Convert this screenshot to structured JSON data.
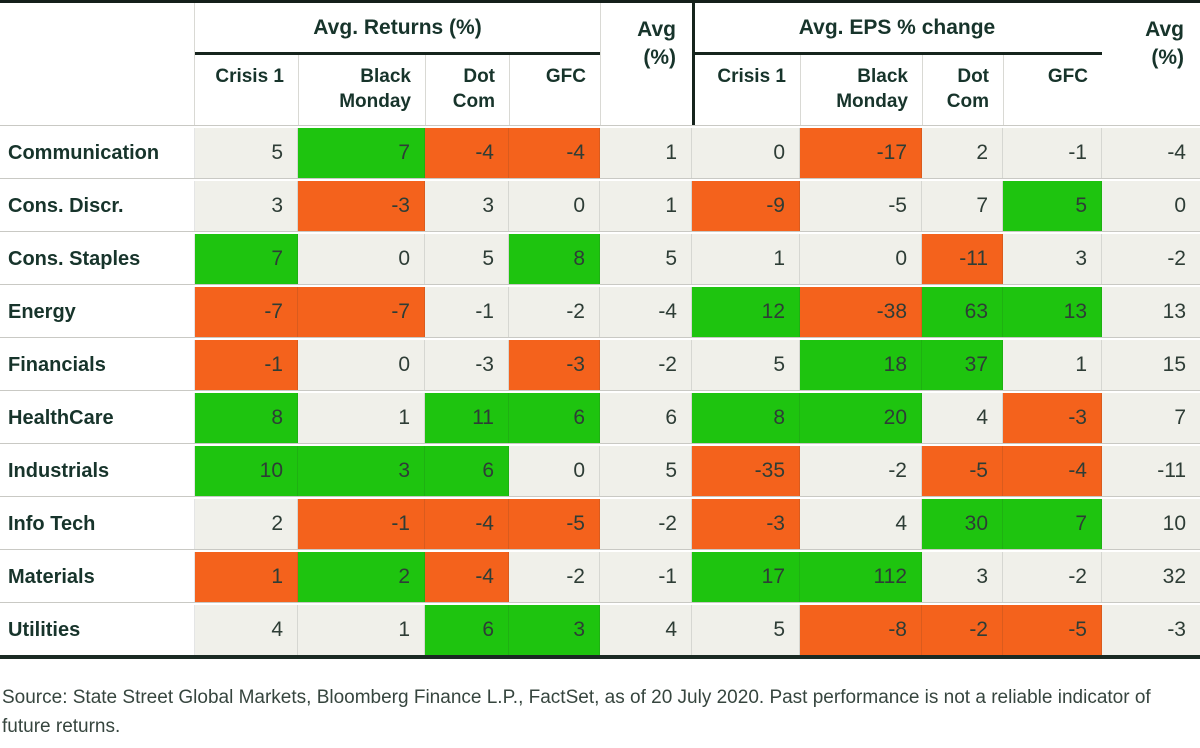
{
  "colors": {
    "green": "#1ec40f",
    "orange": "#f4621c",
    "neutral": "#f0f0ea",
    "divider_dark": "#16241d",
    "heading_text": "#17342b",
    "number_text": "#2e3d36"
  },
  "header": {
    "returns_group": "Avg. Returns (%)",
    "eps_group": "Avg. EPS % change",
    "avg_line1": "Avg",
    "avg_line2": "(%)"
  },
  "chart_data": {
    "type": "table",
    "column_groups": [
      "Avg. Returns (%)",
      "Avg. EPS % change"
    ],
    "crisis_columns": [
      "Crisis 1",
      "Black Monday",
      "Dot Com",
      "GFC"
    ],
    "avg_column_label": "Avg (%)",
    "cell_color_legend": {
      "green": "favorable",
      "orange": "unfavorable",
      "neutral": "neutral"
    },
    "rows": [
      {
        "sector": "Communication",
        "highlight": false,
        "returns": [
          5,
          7,
          -4,
          -4
        ],
        "returns_colors": [
          "neutral",
          "green",
          "orange",
          "orange"
        ],
        "returns_avg": 1,
        "eps": [
          0,
          -17,
          2,
          -1
        ],
        "eps_colors": [
          "neutral",
          "orange",
          "neutral",
          "neutral"
        ],
        "eps_avg": -4
      },
      {
        "sector": "Cons. Discr.",
        "highlight": false,
        "returns": [
          3,
          -3,
          3,
          0
        ],
        "returns_colors": [
          "neutral",
          "orange",
          "neutral",
          "neutral"
        ],
        "returns_avg": 1,
        "eps": [
          -9,
          -5,
          7,
          5
        ],
        "eps_colors": [
          "orange",
          "neutral",
          "neutral",
          "green"
        ],
        "eps_avg": 0
      },
      {
        "sector": "Cons. Staples",
        "highlight": false,
        "returns": [
          7,
          0,
          5,
          8
        ],
        "returns_colors": [
          "green",
          "neutral",
          "neutral",
          "green"
        ],
        "returns_avg": 5,
        "eps": [
          1,
          0,
          -11,
          3
        ],
        "eps_colors": [
          "neutral",
          "neutral",
          "orange",
          "neutral"
        ],
        "eps_avg": -2
      },
      {
        "sector": "Energy",
        "highlight": false,
        "returns": [
          -7,
          -7,
          -1,
          -2
        ],
        "returns_colors": [
          "orange",
          "orange",
          "neutral",
          "neutral"
        ],
        "returns_avg": -4,
        "eps": [
          12,
          -38,
          63,
          13
        ],
        "eps_colors": [
          "green",
          "orange",
          "green",
          "green"
        ],
        "eps_avg": 13
      },
      {
        "sector": "Financials",
        "highlight": false,
        "returns": [
          -1,
          0,
          -3,
          -3
        ],
        "returns_colors": [
          "orange",
          "neutral",
          "neutral",
          "orange"
        ],
        "returns_avg": -2,
        "eps": [
          5,
          18,
          37,
          1
        ],
        "eps_colors": [
          "neutral",
          "green",
          "green",
          "neutral"
        ],
        "eps_avg": 15
      },
      {
        "sector": "HealthCare",
        "highlight": false,
        "returns": [
          8,
          1,
          11,
          6
        ],
        "returns_colors": [
          "green",
          "neutral",
          "green",
          "green"
        ],
        "returns_avg": 6,
        "eps": [
          8,
          20,
          4,
          -3
        ],
        "eps_colors": [
          "green",
          "green",
          "neutral",
          "orange"
        ],
        "eps_avg": 7
      },
      {
        "sector": "Industrials",
        "highlight": true,
        "returns": [
          10,
          3,
          6,
          0
        ],
        "returns_colors": [
          "green",
          "green",
          "green",
          "neutral"
        ],
        "returns_avg": 5,
        "eps": [
          -35,
          -2,
          -5,
          -4
        ],
        "eps_colors": [
          "orange",
          "neutral",
          "orange",
          "orange"
        ],
        "eps_avg": -11
      },
      {
        "sector": "Info Tech",
        "highlight": false,
        "returns": [
          2,
          -1,
          -4,
          -5
        ],
        "returns_colors": [
          "neutral",
          "orange",
          "orange",
          "orange"
        ],
        "returns_avg": -2,
        "eps": [
          -3,
          4,
          30,
          7
        ],
        "eps_colors": [
          "orange",
          "neutral",
          "green",
          "green"
        ],
        "eps_avg": 10
      },
      {
        "sector": "Materials",
        "highlight": false,
        "returns": [
          1,
          2,
          -4,
          -2
        ],
        "returns_colors": [
          "orange",
          "green",
          "orange",
          "neutral"
        ],
        "returns_avg": -1,
        "eps": [
          17,
          112,
          3,
          -2
        ],
        "eps_colors": [
          "green",
          "green",
          "neutral",
          "neutral"
        ],
        "eps_avg": 32
      },
      {
        "sector": "Utilities",
        "highlight": false,
        "returns": [
          4,
          1,
          6,
          3
        ],
        "returns_colors": [
          "neutral",
          "neutral",
          "green",
          "green"
        ],
        "returns_avg": 4,
        "eps": [
          5,
          -8,
          -2,
          -5
        ],
        "eps_colors": [
          "neutral",
          "orange",
          "orange",
          "orange"
        ],
        "eps_avg": -3
      }
    ]
  },
  "footer": {
    "source_text": "Source: State Street Global Markets, Bloomberg Finance L.P., FactSet, as of 20 July 2020. Past performance is not a reliable indicator of future returns."
  }
}
